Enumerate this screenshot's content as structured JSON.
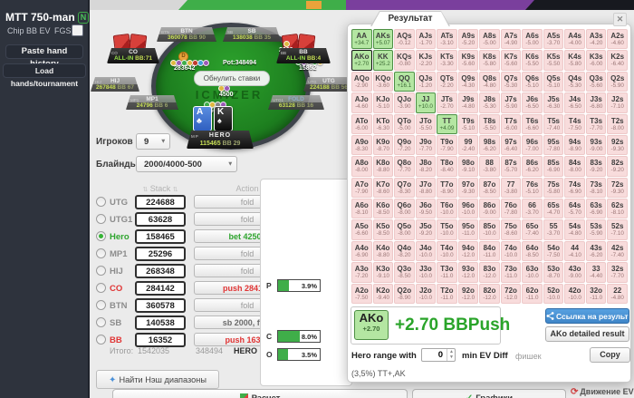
{
  "icons": {
    "caret": "▾",
    "close": "✕",
    "sparkle": "✦",
    "check": "✓",
    "refresh": "⟳",
    "sort": "⇅",
    "spin_up": "▲",
    "spin_down": "▼"
  },
  "sidebar": {
    "title": "MTT 750-man",
    "badge": "N",
    "mode": "Chip BB EV",
    "fgs_label": "FGS",
    "paste_button": "Paste hand history",
    "load_button": "Load hands/tournament"
  },
  "table": {
    "watermark": "ICMIZER",
    "reset_button": "Обнулить ставки",
    "dealer": "D",
    "seats": {
      "btn": {
        "tag": "BTN",
        "name": "BTN",
        "stack": "360078",
        "bb": "BB 90"
      },
      "sb": {
        "tag": "SB",
        "name": "SB",
        "stack": "138038",
        "bb": "BB 35"
      },
      "co": {
        "tag": "CO",
        "name": "CO",
        "stack": "ALL-IN",
        "bb": "BB:71"
      },
      "bb": {
        "tag": "BB",
        "name": "BB",
        "stack": "ALL-IN",
        "bb": "BB:4"
      },
      "hij": {
        "tag": "HIJ",
        "name": "HIJ",
        "stack": "267848",
        "bb": "BB 67"
      },
      "utg": {
        "tag": "UTG",
        "name": "UTG",
        "stack": "224188",
        "bb": "BB 56"
      },
      "mp1": {
        "tag": "MP1",
        "name": "MP1",
        "stack": "24796",
        "bb": "BB 6"
      },
      "utg1": {
        "tag": "UTG1",
        "name": "FOLD",
        "stack": "63128",
        "bb": "BB 16"
      },
      "hero": {
        "tag": "MP",
        "name": "HERO",
        "stack": "115465",
        "bb": "BB 29"
      }
    },
    "bets": {
      "sb": "2000",
      "bb": "15852",
      "co": "283642",
      "hero": "42500",
      "antes": "4500",
      "pot": "Pot:348494"
    },
    "hero_cards": [
      {
        "rank": "A",
        "suit": "♣"
      },
      {
        "rank": "K",
        "suit": "♠"
      }
    ]
  },
  "controls": {
    "players_label": "Игроков",
    "players_value": "9",
    "blinds_label": "Блайнды",
    "blinds_value": "2000/4000-500"
  },
  "players_table": {
    "stack_header": "Stack",
    "action_header": "Action",
    "rows": [
      {
        "name": "UTG",
        "stack": "224688",
        "action": "fold",
        "style": "fold",
        "name_style": "",
        "selected": false
      },
      {
        "name": "UTG1",
        "stack": "63628",
        "action": "fold",
        "style": "fold",
        "name_style": "",
        "selected": false
      },
      {
        "name": "Hero",
        "stack": "158465",
        "action": "bet 42500",
        "style": "bet",
        "name_style": "hero",
        "selected": true
      },
      {
        "name": "MP1",
        "stack": "25296",
        "action": "fold",
        "style": "fold",
        "name_style": "",
        "selected": false
      },
      {
        "name": "HIJ",
        "stack": "268348",
        "action": "fold",
        "style": "fold",
        "name_style": "",
        "selected": false
      },
      {
        "name": "CO",
        "stack": "284142",
        "action": "push 284142",
        "style": "push",
        "name_style": "red",
        "selected": false
      },
      {
        "name": "BTN",
        "stack": "360578",
        "action": "fold",
        "style": "fold",
        "name_style": "",
        "selected": false
      },
      {
        "name": "SB",
        "stack": "140538",
        "action": "sb 2000, fold",
        "style": "sb",
        "name_style": "",
        "selected": false
      },
      {
        "name": "BB",
        "stack": "16352",
        "action": "push 16352",
        "style": "push",
        "name_style": "red",
        "selected": false
      }
    ],
    "total_label": "Итого:",
    "total_stack": "1542035",
    "total_pot": "348494",
    "hero_label": "HERO"
  },
  "mini_panel": {
    "rows": [
      {
        "label": "P",
        "value": "3.9%"
      },
      {
        "label": "C",
        "value": "8.0%"
      },
      {
        "label": "O",
        "value": "3.5%"
      }
    ]
  },
  "footer": {
    "nash_button": "Найти Нэш диапазоны",
    "calc_button": "Расчет",
    "charts_button": "Графики",
    "ev_link": "Движение EV"
  },
  "result_panel": {
    "tab_title": "Результат",
    "summary": {
      "hand": "AKo",
      "ev": "+2.70",
      "text": "+2.70 BBPush"
    },
    "link_button": "Ссылка на результат",
    "detail_button": "AKo detailed result",
    "copy_button": "Copy",
    "range_label_1": "Hero range with",
    "range_value": "0",
    "range_label_2": "min EV Diff",
    "range_label_3": "фишек",
    "range_summary": "(3,5%) TT+,AK",
    "grid": [
      [
        [
          "AA",
          "+34.7",
          1
        ],
        [
          "AKs",
          "+5.07",
          1
        ],
        [
          "AQs",
          "-0.12"
        ],
        [
          "AJs",
          "-1.70"
        ],
        [
          "ATs",
          "-3.10"
        ],
        [
          "A9s",
          "-5.20"
        ],
        [
          "A8s",
          "-5.00"
        ],
        [
          "A7s",
          "-4.90"
        ],
        [
          "A6s",
          "-5.00"
        ],
        [
          "A5s",
          "-3.70"
        ],
        [
          "A4s",
          "-4.00"
        ],
        [
          "A3s",
          "-4.20"
        ],
        [
          "A2s",
          "-4.60"
        ]
      ],
      [
        [
          "AKo",
          "+2.70",
          1
        ],
        [
          "KK",
          "+25.2",
          1
        ],
        [
          "KQs",
          "-0.80"
        ],
        [
          "KJs",
          "-2.20"
        ],
        [
          "KTs",
          "-3.30"
        ],
        [
          "K9s",
          "-5.60"
        ],
        [
          "K8s",
          "-5.80"
        ],
        [
          "K7s",
          "-5.60"
        ],
        [
          "K6s",
          "-5.50"
        ],
        [
          "K5s",
          "-5.50"
        ],
        [
          "K4s",
          "-5.80"
        ],
        [
          "K3s",
          "-6.00"
        ],
        [
          "K2s",
          "-6.40"
        ]
      ],
      [
        [
          "AQo",
          "-2.90"
        ],
        [
          "KQo",
          "-3.60"
        ],
        [
          "QQ",
          "+16.1",
          1
        ],
        [
          "QJs",
          "-1.20"
        ],
        [
          "QTs",
          "-2.20"
        ],
        [
          "Q9s",
          "-4.30"
        ],
        [
          "Q8s",
          "-4.80"
        ],
        [
          "Q7s",
          "-5.30"
        ],
        [
          "Q6s",
          "-5.10"
        ],
        [
          "Q5s",
          "-5.10"
        ],
        [
          "Q4s",
          "-5.30"
        ],
        [
          "Q3s",
          "-5.60"
        ],
        [
          "Q2s",
          "-5.90"
        ]
      ],
      [
        [
          "AJo",
          "-4.60"
        ],
        [
          "KJo",
          "-5.10"
        ],
        [
          "QJo",
          "-3.90"
        ],
        [
          "JJ",
          "+10.0",
          1
        ],
        [
          "JTs",
          "-2.70"
        ],
        [
          "J9s",
          "-4.80"
        ],
        [
          "J8s",
          "-5.30"
        ],
        [
          "J7s",
          "-5.90"
        ],
        [
          "J6s",
          "-6.50"
        ],
        [
          "J5s",
          "-6.30"
        ],
        [
          "J4s",
          "-6.50"
        ],
        [
          "J3s",
          "-6.80"
        ],
        [
          "J2s",
          "-7.10"
        ]
      ],
      [
        [
          "ATo",
          "-6.00"
        ],
        [
          "KTo",
          "-6.30"
        ],
        [
          "QTo",
          "-5.00"
        ],
        [
          "JTo",
          "-5.50"
        ],
        [
          "TT",
          "+4.09",
          1
        ],
        [
          "T9s",
          "-5.10"
        ],
        [
          "T8s",
          "-5.50"
        ],
        [
          "T7s",
          "-6.00"
        ],
        [
          "T6s",
          "-6.60"
        ],
        [
          "T5s",
          "-7.40"
        ],
        [
          "T4s",
          "-7.50"
        ],
        [
          "T3s",
          "-7.70"
        ],
        [
          "T2s",
          "-8.00"
        ]
      ],
      [
        [
          "A9o",
          "-8.30"
        ],
        [
          "K9o",
          "-8.70"
        ],
        [
          "Q9o",
          "-7.20"
        ],
        [
          "J9o",
          "-7.70"
        ],
        [
          "T9o",
          "-7.90"
        ],
        [
          "99",
          "-2.40"
        ],
        [
          "98s",
          "-6.20"
        ],
        [
          "97s",
          "-6.40"
        ],
        [
          "96s",
          "-7.00"
        ],
        [
          "95s",
          "-7.80"
        ],
        [
          "94s",
          "-8.90"
        ],
        [
          "93s",
          "-9.00"
        ],
        [
          "92s",
          "-9.30"
        ]
      ],
      [
        [
          "A8o",
          "-8.00"
        ],
        [
          "K8o",
          "-8.80"
        ],
        [
          "Q8o",
          "-7.70"
        ],
        [
          "J8o",
          "-8.20"
        ],
        [
          "T8o",
          "-8.40"
        ],
        [
          "98o",
          "-9.10"
        ],
        [
          "88",
          "-3.80"
        ],
        [
          "87s",
          "-5.70"
        ],
        [
          "86s",
          "-6.20"
        ],
        [
          "85s",
          "-6.90"
        ],
        [
          "84s",
          "-8.00"
        ],
        [
          "83s",
          "-9.20"
        ],
        [
          "82s",
          "-9.20"
        ]
      ],
      [
        [
          "A7o",
          "-7.90"
        ],
        [
          "K7o",
          "-8.60"
        ],
        [
          "Q7o",
          "-8.30"
        ],
        [
          "J7o",
          "-8.80"
        ],
        [
          "T7o",
          "-8.90"
        ],
        [
          "97o",
          "-9.30"
        ],
        [
          "87o",
          "-8.50"
        ],
        [
          "77",
          "-3.80"
        ],
        [
          "76s",
          "-5.10"
        ],
        [
          "75s",
          "-5.80"
        ],
        [
          "74s",
          "-6.90"
        ],
        [
          "73s",
          "-8.10"
        ],
        [
          "72s",
          "-9.30"
        ]
      ],
      [
        [
          "A6o",
          "-8.10"
        ],
        [
          "K6o",
          "-8.50"
        ],
        [
          "Q6o",
          "-8.00"
        ],
        [
          "J6o",
          "-9.50"
        ],
        [
          "T6o",
          "-10.0"
        ],
        [
          "96o",
          "-10.0"
        ],
        [
          "86o",
          "-9.00"
        ],
        [
          "76o",
          "-7.80"
        ],
        [
          "66",
          "-3.70"
        ],
        [
          "65s",
          "-4.70"
        ],
        [
          "64s",
          "-5.70"
        ],
        [
          "63s",
          "-6.90"
        ],
        [
          "62s",
          "-8.10"
        ]
      ],
      [
        [
          "A5o",
          "-6.60"
        ],
        [
          "K5o",
          "-8.50"
        ],
        [
          "Q5o",
          "-8.00"
        ],
        [
          "J5o",
          "-9.20"
        ],
        [
          "T5o",
          "-10.0"
        ],
        [
          "95o",
          "-11.0"
        ],
        [
          "85o",
          "-10.0"
        ],
        [
          "75o",
          "-8.60"
        ],
        [
          "65o",
          "-7.40"
        ],
        [
          "55",
          "-3.70"
        ],
        [
          "54s",
          "-4.80"
        ],
        [
          "53s",
          "-5.90"
        ],
        [
          "52s",
          "-7.10"
        ]
      ],
      [
        [
          "A4o",
          "-6.90"
        ],
        [
          "K4o",
          "-8.80"
        ],
        [
          "Q4o",
          "-8.20"
        ],
        [
          "J4o",
          "-10.0"
        ],
        [
          "T4o",
          "-10.0"
        ],
        [
          "94o",
          "-12.0"
        ],
        [
          "84o",
          "-11.0"
        ],
        [
          "74o",
          "-10.0"
        ],
        [
          "64o",
          "-8.50"
        ],
        [
          "54o",
          "-7.50"
        ],
        [
          "44",
          "-4.10"
        ],
        [
          "43s",
          "-6.20"
        ],
        [
          "42s",
          "-7.40"
        ]
      ],
      [
        [
          "A3o",
          "-7.20"
        ],
        [
          "K3o",
          "-9.10"
        ],
        [
          "Q3o",
          "-8.50"
        ],
        [
          "J3o",
          "-10.0"
        ],
        [
          "T3o",
          "-11.0"
        ],
        [
          "93o",
          "-12.0"
        ],
        [
          "83o",
          "-12.0"
        ],
        [
          "73o",
          "-11.0"
        ],
        [
          "63o",
          "-10.0"
        ],
        [
          "53o",
          "-8.70"
        ],
        [
          "43o",
          "-9.00"
        ],
        [
          "33",
          "-4.40"
        ],
        [
          "32s",
          "-7.70"
        ]
      ],
      [
        [
          "A2o",
          "-7.50"
        ],
        [
          "K2o",
          "-9.40"
        ],
        [
          "Q2o",
          "-8.90"
        ],
        [
          "J2o",
          "-10.0"
        ],
        [
          "T2o",
          "-11.0"
        ],
        [
          "92o",
          "-12.0"
        ],
        [
          "82o",
          "-12.0"
        ],
        [
          "72o",
          "-12.0"
        ],
        [
          "62o",
          "-11.0"
        ],
        [
          "52o",
          "-10.0"
        ],
        [
          "42o",
          "-10.0"
        ],
        [
          "32o",
          "-11.0"
        ],
        [
          "22",
          "-4.80"
        ]
      ]
    ]
  }
}
